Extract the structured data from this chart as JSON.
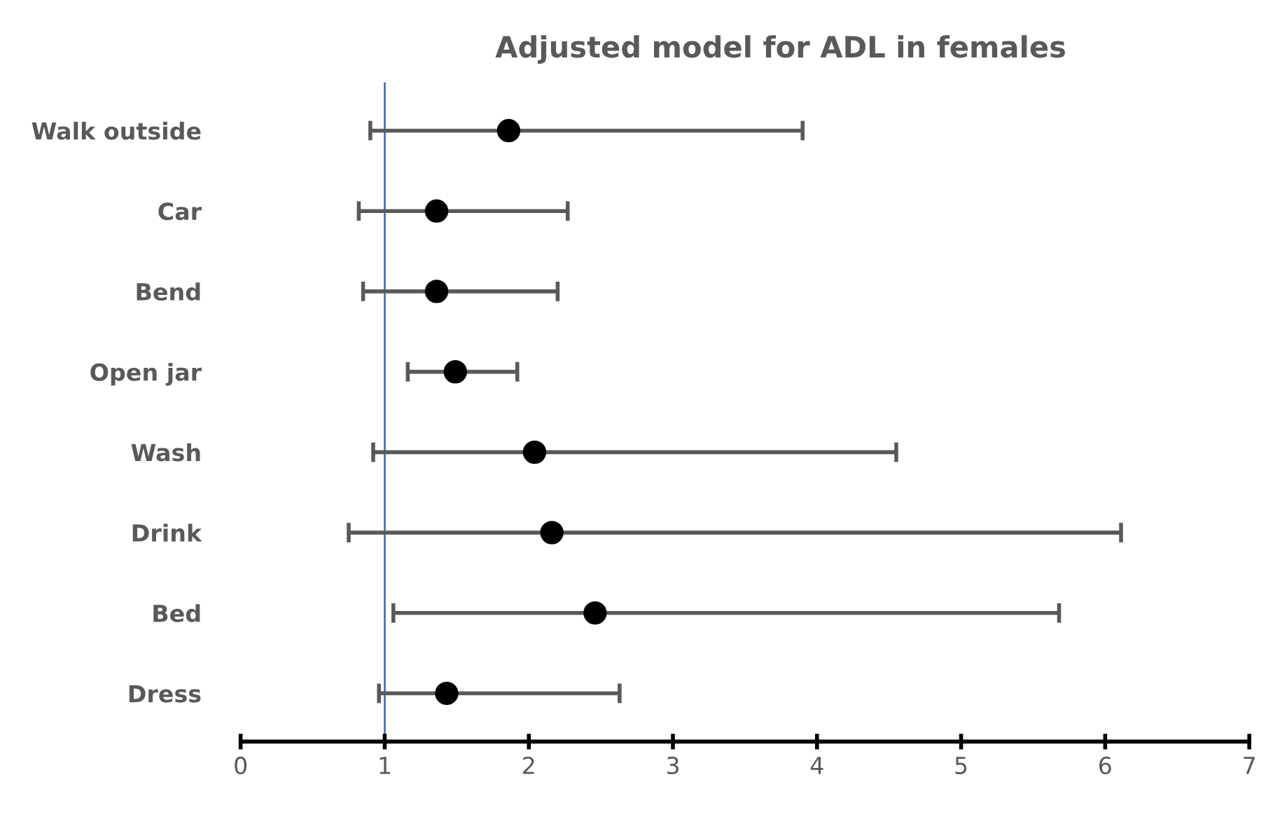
{
  "chart_data": {
    "type": "scatter",
    "orientation": "horizontal",
    "title": "Adjusted model for ADL in females",
    "categories": [
      "Walk outside",
      "Car",
      "Bend",
      "Open jar",
      "Wash",
      "Drink",
      "Bed",
      "Dress"
    ],
    "values": [
      1.86,
      1.36,
      1.36,
      1.49,
      2.04,
      2.16,
      2.46,
      1.43
    ],
    "errors": [
      [
        0.9,
        3.9
      ],
      [
        0.82,
        2.27
      ],
      [
        0.85,
        2.2
      ],
      [
        1.16,
        1.92
      ],
      [
        0.92,
        4.55
      ],
      [
        0.75,
        6.11
      ],
      [
        1.06,
        5.68
      ],
      [
        0.96,
        2.63
      ]
    ],
    "color": "#000000",
    "xlim": [
      0,
      7
    ],
    "xticks": [
      0,
      1,
      2,
      3,
      4,
      5,
      6,
      7
    ],
    "marker": "circle",
    "grid": false,
    "legend": false,
    "ref_lines": [
      {
        "axis": "x",
        "value": 1,
        "color": "#4472c4"
      }
    ]
  }
}
